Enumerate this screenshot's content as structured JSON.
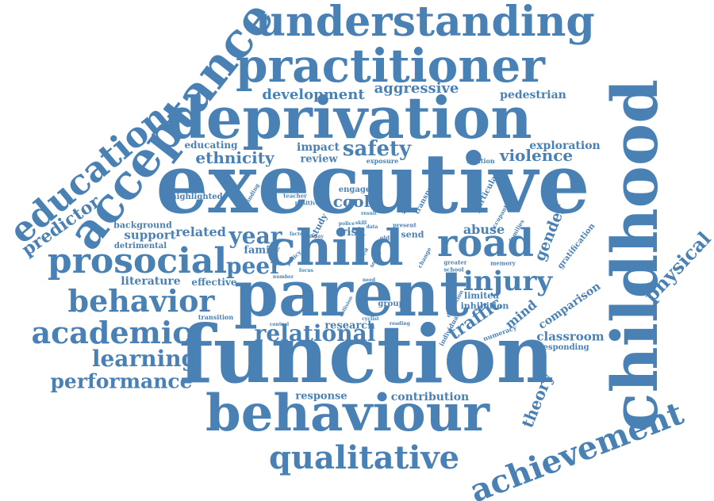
{
  "colors": {
    "word": "#4a81b5",
    "background": "#ffffff"
  },
  "words": [
    {
      "text": "executive"
    },
    {
      "text": "function"
    },
    {
      "text": "parent"
    },
    {
      "text": "deprivation"
    },
    {
      "text": "childhood"
    },
    {
      "text": "behaviour"
    },
    {
      "text": "practitioner"
    },
    {
      "text": "understanding"
    },
    {
      "text": "acceptance"
    },
    {
      "text": "education"
    },
    {
      "text": "child"
    },
    {
      "text": "prosocial"
    },
    {
      "text": "road"
    },
    {
      "text": "behavior"
    },
    {
      "text": "academic"
    },
    {
      "text": "qualitative"
    },
    {
      "text": "achievement"
    },
    {
      "text": "injury"
    },
    {
      "text": "learning"
    },
    {
      "text": "performance"
    },
    {
      "text": "relational"
    },
    {
      "text": "physical"
    },
    {
      "text": "safety"
    },
    {
      "text": "year"
    },
    {
      "text": "peer"
    },
    {
      "text": "violence"
    },
    {
      "text": "ethnicity"
    },
    {
      "text": "development"
    },
    {
      "text": "aggressive"
    },
    {
      "text": "predictor"
    },
    {
      "text": "traffic"
    },
    {
      "text": "gender"
    },
    {
      "text": "theory"
    },
    {
      "text": "cool"
    },
    {
      "text": "abuse"
    },
    {
      "text": "mind"
    },
    {
      "text": "classroom"
    },
    {
      "text": "comparison"
    },
    {
      "text": "pedestrian"
    },
    {
      "text": "exploration"
    },
    {
      "text": "literature"
    },
    {
      "text": "support"
    },
    {
      "text": "related"
    },
    {
      "text": "family"
    },
    {
      "text": "impact"
    },
    {
      "text": "review"
    },
    {
      "text": "educating"
    },
    {
      "text": "contribution"
    },
    {
      "text": "response"
    },
    {
      "text": "research"
    },
    {
      "text": "risk"
    },
    {
      "text": "effective"
    },
    {
      "text": "background"
    },
    {
      "text": "detrimental"
    },
    {
      "text": "highlighted"
    },
    {
      "text": "gratification"
    },
    {
      "text": "responding"
    },
    {
      "text": "limited"
    },
    {
      "text": "inhibition"
    },
    {
      "text": "group"
    },
    {
      "text": "engage"
    },
    {
      "text": "send"
    },
    {
      "text": "study"
    },
    {
      "text": "evidence"
    },
    {
      "text": "transport"
    },
    {
      "text": "particular"
    },
    {
      "text": "relation"
    },
    {
      "text": "exposure"
    },
    {
      "text": "transition"
    },
    {
      "text": "teacher"
    },
    {
      "text": "positive"
    },
    {
      "text": "finding"
    },
    {
      "text": "numeracy"
    },
    {
      "text": "individual"
    },
    {
      "text": "definition"
    },
    {
      "text": "cyclist"
    },
    {
      "text": "collision"
    },
    {
      "text": "control"
    },
    {
      "text": "number"
    },
    {
      "text": "greater"
    },
    {
      "text": "school"
    },
    {
      "text": "memory"
    },
    {
      "text": "occupant"
    },
    {
      "text": "families"
    },
    {
      "text": "change"
    },
    {
      "text": "area"
    },
    {
      "text": "social"
    },
    {
      "text": "policy"
    },
    {
      "text": "reading"
    },
    {
      "text": "present"
    },
    {
      "text": "old"
    },
    {
      "text": "factor"
    },
    {
      "text": "delay"
    },
    {
      "text": "focus"
    },
    {
      "text": "result"
    },
    {
      "text": "police"
    },
    {
      "text": "skill"
    },
    {
      "text": "data"
    },
    {
      "text": "need"
    }
  ]
}
